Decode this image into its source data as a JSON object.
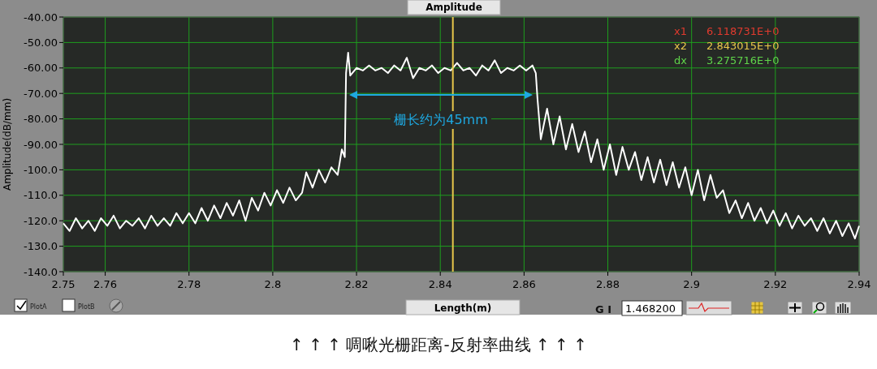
{
  "chart_data": {
    "type": "line",
    "title": "Amplitude",
    "xlabel": "Length(m)",
    "ylabel": "Amplitude(dB/mm)",
    "xlim": [
      2.75,
      2.94
    ],
    "xticks": [
      2.75,
      2.76,
      2.78,
      2.8,
      2.82,
      2.84,
      2.86,
      2.88,
      2.9,
      2.92,
      2.94
    ],
    "ylim": [
      -140,
      -40
    ],
    "yticks": [
      {
        "value": -40,
        "label": "-40.00"
      },
      {
        "value": -50,
        "label": "-50.00"
      },
      {
        "value": -60,
        "label": "-60.00"
      },
      {
        "value": -70,
        "label": "-70.00"
      },
      {
        "value": -80,
        "label": "-80.00"
      },
      {
        "value": -90,
        "label": "-90.00"
      },
      {
        "value": -100,
        "label": "-100.0"
      },
      {
        "value": -110,
        "label": "-110.0"
      },
      {
        "value": -120,
        "label": "-120.0"
      },
      {
        "value": -130,
        "label": "-130.0"
      },
      {
        "value": -140,
        "label": "-140.0"
      }
    ],
    "grid": true,
    "marker": "none",
    "line_style": "solid",
    "ref_lines": [
      {
        "axis": "x",
        "value": 2.843,
        "color": "#e8c64a"
      }
    ],
    "annotations": [
      "栅长约为45mm",
      "x1",
      "6.118731E+0",
      "x2",
      "2.843015E+0",
      "dx",
      "3.275716E+0",
      "PlotA",
      "PlotB",
      "G I",
      "1.468200",
      "↑ ↑ ↑  啁啾光栅距离-反射率曲线  ↑ ↑ ↑"
    ],
    "series": [
      {
        "color": "#ffffff",
        "x": [
          2.75,
          2.7515,
          2.753,
          2.7545,
          2.756,
          2.7575,
          2.759,
          2.7605,
          2.762,
          2.7635,
          2.765,
          2.7665,
          2.768,
          2.7695,
          2.771,
          2.7725,
          2.774,
          2.7755,
          2.777,
          2.7785,
          2.78,
          2.7815,
          2.783,
          2.7845,
          2.786,
          2.7875,
          2.789,
          2.7905,
          2.792,
          2.7935,
          2.795,
          2.7965,
          2.798,
          2.7995,
          2.801,
          2.8025,
          2.804,
          2.8055,
          2.807,
          2.808,
          2.8095,
          2.811,
          2.8125,
          2.814,
          2.8155,
          2.8165,
          2.8172,
          2.8175,
          2.818,
          2.8185,
          2.82,
          2.8215,
          2.823,
          2.8245,
          2.826,
          2.8275,
          2.829,
          2.8305,
          2.832,
          2.8335,
          2.835,
          2.8365,
          2.838,
          2.8395,
          2.841,
          2.8425,
          2.844,
          2.8455,
          2.847,
          2.8485,
          2.85,
          2.8515,
          2.853,
          2.8545,
          2.856,
          2.8575,
          2.859,
          2.8605,
          2.862,
          2.8628,
          2.8632,
          2.864,
          2.8655,
          2.867,
          2.8685,
          2.87,
          2.8715,
          2.873,
          2.8745,
          2.876,
          2.8775,
          2.879,
          2.8805,
          2.882,
          2.8835,
          2.885,
          2.8865,
          2.888,
          2.8895,
          2.891,
          2.8925,
          2.894,
          2.8955,
          2.897,
          2.8985,
          2.9,
          2.9015,
          2.903,
          2.9045,
          2.906,
          2.9075,
          2.909,
          2.9105,
          2.912,
          2.9135,
          2.915,
          2.9165,
          2.918,
          2.9195,
          2.921,
          2.9225,
          2.924,
          2.9255,
          2.927,
          2.9285,
          2.93,
          2.9315,
          2.933,
          2.9345,
          2.936,
          2.9375,
          2.939,
          2.94
        ],
        "values": [
          -121,
          -124,
          -119,
          -123,
          -120,
          -124,
          -119,
          -122,
          -118,
          -123,
          -120,
          -122,
          -119,
          -123,
          -118,
          -122,
          -119,
          -122,
          -117,
          -121,
          -117,
          -121,
          -115,
          -120,
          -114,
          -119,
          -113,
          -118,
          -112,
          -120,
          -111,
          -116,
          -109,
          -114,
          -108,
          -113,
          -107,
          -112,
          -109,
          -101,
          -107,
          -100,
          -105,
          -99,
          -102,
          -92,
          -95,
          -62,
          -54,
          -63,
          -60,
          -61,
          -59,
          -61,
          -60,
          -62,
          -59,
          -61,
          -56,
          -64,
          -60,
          -61,
          -59,
          -62,
          -60,
          -61,
          -58,
          -61,
          -60,
          -63,
          -59,
          -61,
          -57,
          -62,
          -60,
          -61,
          -59,
          -61,
          -59,
          -62,
          -72,
          -88,
          -76,
          -90,
          -79,
          -92,
          -82,
          -93,
          -85,
          -97,
          -88,
          -100,
          -90,
          -102,
          -91,
          -100,
          -93,
          -104,
          -95,
          -105,
          -96,
          -106,
          -97,
          -107,
          -99,
          -110,
          -100,
          -112,
          -102,
          -111,
          -108,
          -117,
          -112,
          -119,
          -113,
          -120,
          -115,
          -121,
          -116,
          -122,
          -117,
          -123,
          -118,
          -122,
          -119,
          -124,
          -119,
          -125,
          -120,
          -126,
          -121,
          -127,
          -122
        ]
      }
    ]
  }
}
